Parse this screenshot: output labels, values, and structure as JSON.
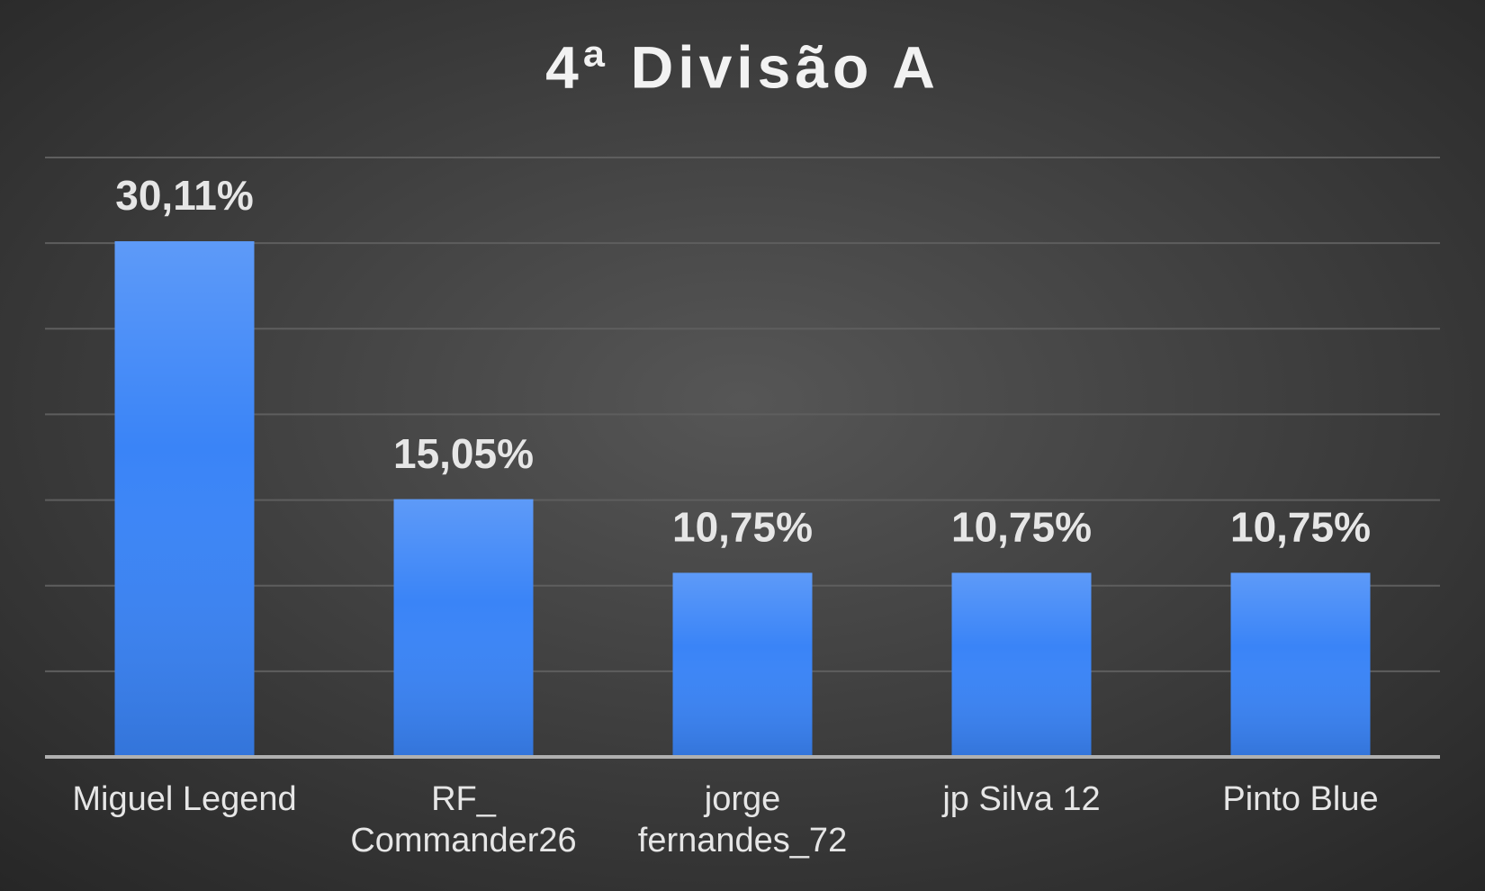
{
  "chart_data": {
    "type": "bar",
    "title": "4ª Divisão A",
    "categories": [
      "Miguel Legend",
      "RF_ Commander26",
      "jorge fernandes_72",
      "jp Silva 12",
      "Pinto Blue"
    ],
    "values": [
      30.11,
      15.05,
      10.75,
      10.75,
      10.75
    ],
    "value_labels": [
      "30,11%",
      "15,05%",
      "10,75%",
      "10,75%",
      "10,75%"
    ],
    "color": "#3a84f7",
    "ylim": [
      0,
      35
    ],
    "yticks": [
      0,
      5,
      10,
      15,
      20,
      25,
      30,
      35
    ],
    "grid": true
  }
}
